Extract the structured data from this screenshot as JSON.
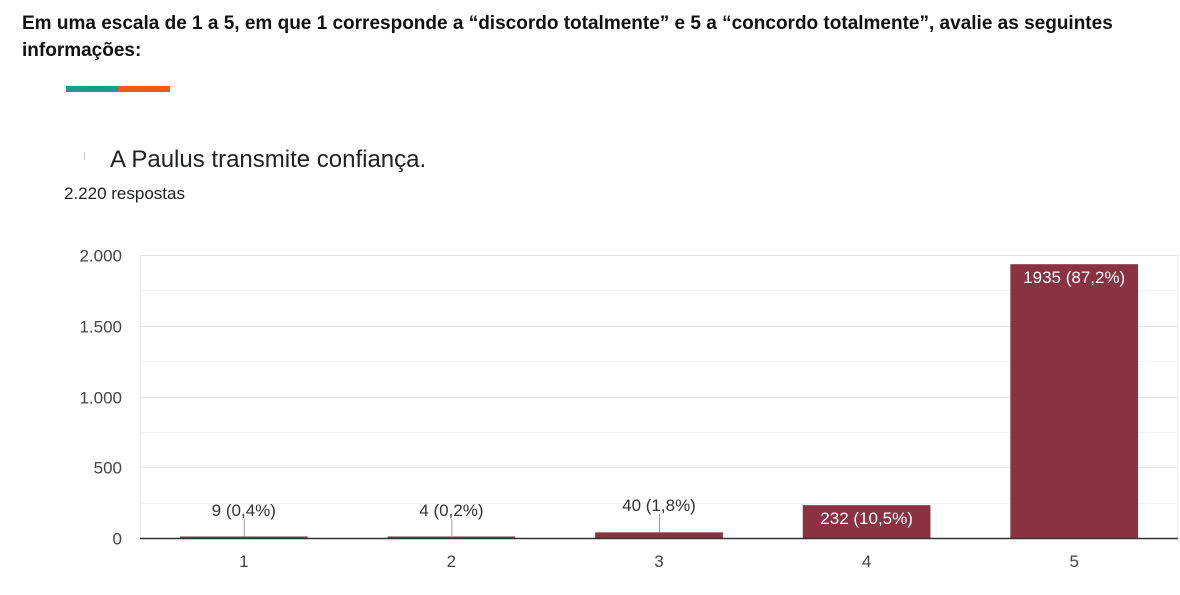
{
  "question": {
    "text": "Em uma escala de 1 a 5, em que 1 corresponde a “discordo totalmente” e 5 a “concordo totalmente”, avalie as seguintes informações:"
  },
  "accent": {
    "colors": [
      "#21998a",
      "#ec5b17"
    ]
  },
  "card": {
    "title": "A Paulus transmite confiança.",
    "response_count": "2.220 respostas"
  },
  "chart_data": {
    "type": "bar",
    "categories": [
      "1",
      "2",
      "3",
      "4",
      "5"
    ],
    "values": [
      9,
      4,
      40,
      232,
      1935
    ],
    "data_labels": [
      "9 (0,4%)",
      "4 (0,2%)",
      "40 (1,8%)",
      "232 (10,5%)",
      "1935 (87,2%)"
    ],
    "title": "A Paulus transmite confiança.",
    "xlabel": "",
    "ylabel": "",
    "ylim": [
      0,
      2000
    ],
    "y_ticks": [
      0,
      500,
      1000,
      1500,
      2000
    ],
    "y_tick_labels": [
      "0",
      "500",
      "1.000",
      "1.500",
      "2.000"
    ],
    "bar_color": "#8a3241",
    "grid": true,
    "legend": "none"
  }
}
